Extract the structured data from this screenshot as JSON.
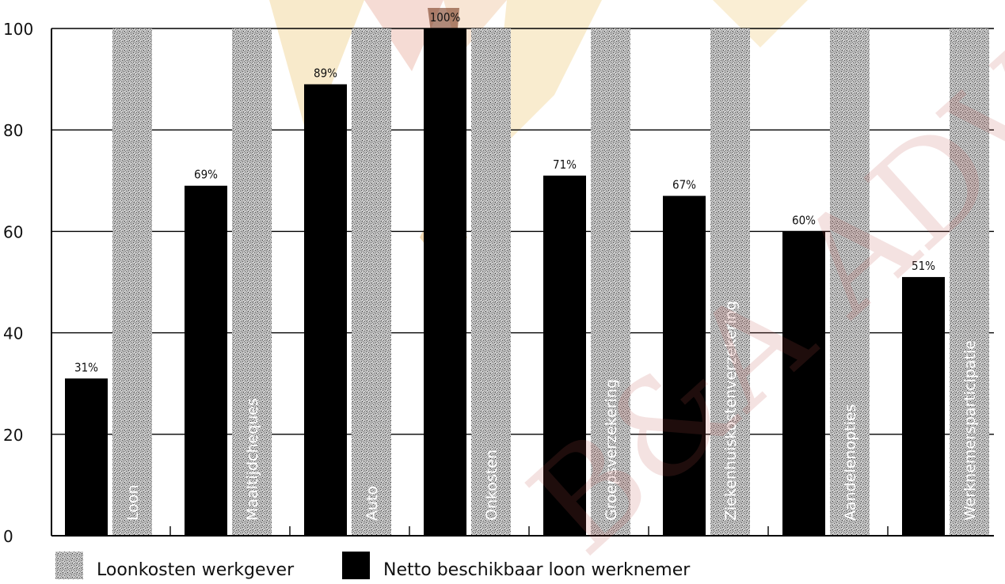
{
  "chart_data": {
    "type": "bar",
    "categories": [
      "Loon",
      "Maaltijdcheques",
      "Auto",
      "Onkosten",
      "Groepsverzekering",
      "Ziekenhuiskostenverzekering",
      "Aandelenopties",
      "Werknemersparticipatie"
    ],
    "series": [
      {
        "name": "Loonkosten werkgever",
        "values": [
          100,
          100,
          100,
          100,
          100,
          100,
          100,
          100
        ]
      },
      {
        "name": "Netto beschikbaar loon werknemer",
        "values": [
          31,
          69,
          89,
          100,
          71,
          67,
          60,
          51
        ]
      }
    ],
    "data_labels": [
      "31%",
      "69%",
      "89%",
      "100%",
      "71%",
      "67%",
      "60%",
      "51%"
    ],
    "yticks": [
      0,
      20,
      40,
      60,
      80,
      100
    ],
    "ylim": [
      0,
      100
    ],
    "grid": "horizontal",
    "legend_position": "bottom-left",
    "colors": {
      "net": "#000000",
      "cost": "#b8b8b8",
      "grid": "#000000"
    },
    "watermark": "B&A ADVIES"
  }
}
